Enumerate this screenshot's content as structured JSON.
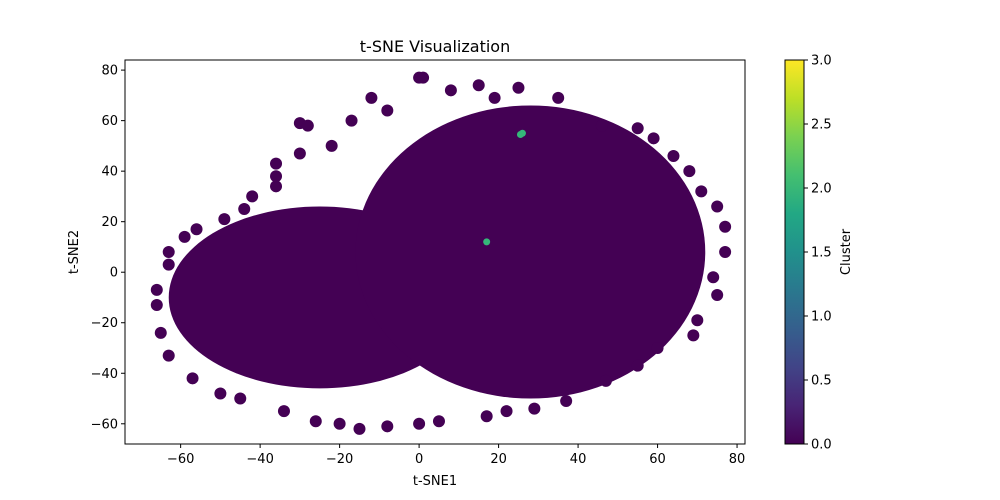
{
  "chart_data": {
    "type": "scatter",
    "title": "t-SNE Visualization",
    "xlabel": "t-SNE1",
    "ylabel": "t-SNE2",
    "xlim": [
      -74,
      82
    ],
    "ylim": [
      -68,
      84
    ],
    "xticks": [
      -60,
      -40,
      -20,
      0,
      20,
      40,
      60,
      80
    ],
    "yticks": [
      -60,
      -40,
      -20,
      0,
      20,
      40,
      60,
      80
    ],
    "grid": false,
    "legend": "none",
    "colormap": "viridis",
    "colorbar": {
      "label": "Cluster",
      "range": [
        0.0,
        3.0
      ],
      "ticks": [
        0.0,
        0.5,
        1.0,
        1.5,
        2.0,
        2.5,
        3.0
      ],
      "tick_labels": [
        "0.0",
        "0.5",
        "1.0",
        "1.5",
        "2.0",
        "2.5",
        "3.0"
      ]
    },
    "cluster_colors": {
      "0": "#440154",
      "1": "#31688e",
      "2": "#35b779",
      "3": "#fde725"
    },
    "dominant_cluster": 0,
    "regions": [
      {
        "cluster": 0,
        "shape": "ellipse",
        "center": [
          -25,
          -10
        ],
        "radius": [
          38,
          36
        ]
      },
      {
        "cluster": 0,
        "shape": "ellipse",
        "center": [
          28,
          8
        ],
        "radius": [
          44,
          58
        ]
      }
    ],
    "points": [
      {
        "x": 0,
        "y": 77,
        "cluster": 0
      },
      {
        "x": 1,
        "y": 77,
        "cluster": 0
      },
      {
        "x": 15,
        "y": 74,
        "cluster": 0
      },
      {
        "x": 25,
        "y": 73,
        "cluster": 0
      },
      {
        "x": 8,
        "y": 72,
        "cluster": 0
      },
      {
        "x": -12,
        "y": 69,
        "cluster": 0
      },
      {
        "x": 35,
        "y": 69,
        "cluster": 0
      },
      {
        "x": -30,
        "y": 59,
        "cluster": 0
      },
      {
        "x": -28,
        "y": 58,
        "cluster": 0
      },
      {
        "x": 46,
        "y": 58,
        "cluster": 0
      },
      {
        "x": 55,
        "y": 57,
        "cluster": 0
      },
      {
        "x": 59,
        "y": 53,
        "cluster": 0
      },
      {
        "x": 64,
        "y": 46,
        "cluster": 0
      },
      {
        "x": 68,
        "y": 40,
        "cluster": 0
      },
      {
        "x": 71,
        "y": 32,
        "cluster": 0
      },
      {
        "x": 75,
        "y": 26,
        "cluster": 0
      },
      {
        "x": 77,
        "y": 18,
        "cluster": 0
      },
      {
        "x": 77,
        "y": 8,
        "cluster": 0
      },
      {
        "x": 74,
        "y": -2,
        "cluster": 0
      },
      {
        "x": 75,
        "y": -9,
        "cluster": 0
      },
      {
        "x": 70,
        "y": -19,
        "cluster": 0
      },
      {
        "x": 69,
        "y": -25,
        "cluster": 0
      },
      {
        "x": 60,
        "y": -30,
        "cluster": 0
      },
      {
        "x": 55,
        "y": -37,
        "cluster": 0
      },
      {
        "x": 47,
        "y": -43,
        "cluster": 0
      },
      {
        "x": 37,
        "y": -51,
        "cluster": 0
      },
      {
        "x": 29,
        "y": -54,
        "cluster": 0
      },
      {
        "x": 22,
        "y": -55,
        "cluster": 0
      },
      {
        "x": 17,
        "y": -57,
        "cluster": 0
      },
      {
        "x": 5,
        "y": -59,
        "cluster": 0
      },
      {
        "x": 0,
        "y": -60,
        "cluster": 0
      },
      {
        "x": -8,
        "y": -61,
        "cluster": 0
      },
      {
        "x": -15,
        "y": -62,
        "cluster": 0
      },
      {
        "x": -20,
        "y": -60,
        "cluster": 0
      },
      {
        "x": -26,
        "y": -59,
        "cluster": 0
      },
      {
        "x": -34,
        "y": -55,
        "cluster": 0
      },
      {
        "x": -45,
        "y": -50,
        "cluster": 0
      },
      {
        "x": -50,
        "y": -48,
        "cluster": 0
      },
      {
        "x": -57,
        "y": -42,
        "cluster": 0
      },
      {
        "x": -63,
        "y": -33,
        "cluster": 0
      },
      {
        "x": -65,
        "y": -24,
        "cluster": 0
      },
      {
        "x": -66,
        "y": -13,
        "cluster": 0
      },
      {
        "x": -66,
        "y": -7,
        "cluster": 0
      },
      {
        "x": -63,
        "y": 3,
        "cluster": 0
      },
      {
        "x": -63,
        "y": 8,
        "cluster": 0
      },
      {
        "x": -59,
        "y": 14,
        "cluster": 0
      },
      {
        "x": -56,
        "y": 17,
        "cluster": 0
      },
      {
        "x": -49,
        "y": 21,
        "cluster": 0
      },
      {
        "x": -44,
        "y": 25,
        "cluster": 0
      },
      {
        "x": -42,
        "y": 30,
        "cluster": 0
      },
      {
        "x": -36,
        "y": 34,
        "cluster": 0
      },
      {
        "x": -36,
        "y": 38,
        "cluster": 0
      },
      {
        "x": -36,
        "y": 43,
        "cluster": 0
      },
      {
        "x": -30,
        "y": 47,
        "cluster": 0
      },
      {
        "x": -22,
        "y": 50,
        "cluster": 0
      },
      {
        "x": -17,
        "y": 60,
        "cluster": 0
      },
      {
        "x": -8,
        "y": 64,
        "cluster": 0
      },
      {
        "x": 19,
        "y": 69,
        "cluster": 0
      },
      {
        "x": 26,
        "y": 55,
        "cluster": 2
      },
      {
        "x": 25.5,
        "y": 54.5,
        "cluster": 2
      },
      {
        "x": 17,
        "y": 12,
        "cluster": 2
      }
    ]
  }
}
